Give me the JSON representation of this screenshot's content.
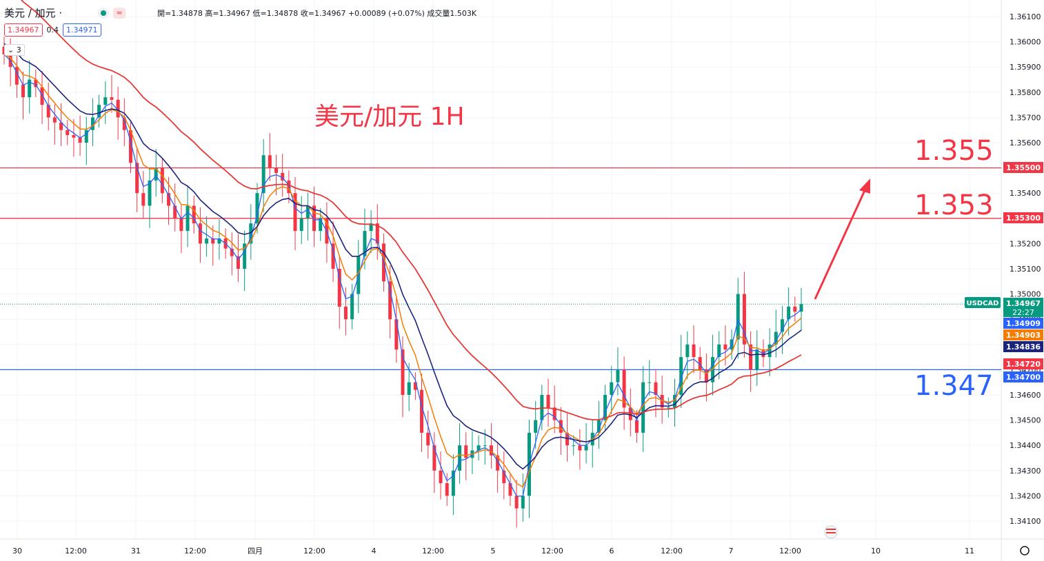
{
  "legend": {
    "symbol": "美元 / 加元 ·",
    "ohlc": "開=1.34878 高=1.34967 低=1.34878 收=1.34967 +0.00089 (+0.07%) 成交量1.503K",
    "bid": "1.34967",
    "spread": "0.4",
    "ask": "1.34971",
    "indicators_collapsed": "3"
  },
  "annotation": {
    "title": "美元/加元 1H",
    "levels": [
      {
        "label": "1.355",
        "value": 1.355,
        "color": "#f23645"
      },
      {
        "label": "1.353",
        "value": 1.353,
        "color": "#f23645"
      },
      {
        "label": "1.347",
        "value": 1.347,
        "color": "#2962ff"
      }
    ]
  },
  "colors": {
    "up": "#089981",
    "down": "#f23645",
    "ma_fast": "#2962ff",
    "ma_mid": "#f57c00",
    "ma_slow": "#1a237e",
    "ma_long": "#e53935",
    "grid": "#f0f3fa"
  },
  "chart_data": {
    "type": "candlestick",
    "symbol": "USDCAD",
    "timeframe": "1H",
    "ylim": [
      1.3405,
      1.3612
    ],
    "y_ticks": [
      "1.36100",
      "1.36000",
      "1.35900",
      "1.35800",
      "1.35700",
      "1.35600",
      "1.35500",
      "1.35400",
      "1.35300",
      "1.35200",
      "1.35100",
      "1.35000",
      "1.34900",
      "1.34800",
      "1.34700",
      "1.34600",
      "1.34500",
      "1.34400",
      "1.34300",
      "1.34200",
      "1.34100"
    ],
    "x_labels": [
      "30",
      "12:00",
      "31",
      "12:00",
      "四月",
      "12:00",
      "4",
      "12:00",
      "5",
      "12:00",
      "6",
      "12:00",
      "7",
      "12:00",
      "10",
      "11"
    ],
    "horizontal_lines": [
      1.355,
      1.353,
      1.347
    ],
    "price_tags": [
      {
        "label": "1.35500",
        "color": "#f23645"
      },
      {
        "label": "1.35300",
        "color": "#f23645"
      },
      {
        "label": "USDCAD",
        "color": "#089981"
      },
      {
        "label": "1.34967",
        "sub": "22:27",
        "color": "#089981"
      },
      {
        "label": "1.34909",
        "color": "#2962ff"
      },
      {
        "label": "1.34903",
        "color": "#f57c00"
      },
      {
        "label": "1.34836",
        "color": "#1a237e"
      },
      {
        "label": "1.34720",
        "color": "#f23645"
      },
      {
        "label": "1.34700",
        "color": "#2962ff"
      }
    ],
    "close_path": [
      1.3595,
      1.359,
      1.3583,
      1.3578,
      1.3585,
      1.3582,
      1.3575,
      1.357,
      1.3568,
      1.3565,
      1.3563,
      1.3562,
      1.356,
      1.3565,
      1.357,
      1.3575,
      1.3578,
      1.3577,
      1.357,
      1.3565,
      1.3552,
      1.354,
      1.3535,
      1.3545,
      1.355,
      1.354,
      1.3535,
      1.353,
      1.3525,
      1.3535,
      1.3528,
      1.352,
      1.3522,
      1.352,
      1.3522,
      1.3518,
      1.3515,
      1.351,
      1.352,
      1.3528,
      1.354,
      1.3555,
      1.355,
      1.3548,
      1.3545,
      1.354,
      1.3525,
      1.353,
      1.3535,
      1.3525,
      1.353,
      1.352,
      1.351,
      1.3495,
      1.349,
      1.35,
      1.3515,
      1.3525,
      1.3528,
      1.352,
      1.3505,
      1.349,
      1.3478,
      1.346,
      1.3465,
      1.3462,
      1.3445,
      1.344,
      1.343,
      1.3425,
      1.342,
      1.343,
      1.344,
      1.3435,
      1.3438,
      1.344,
      1.344,
      1.3436,
      1.343,
      1.3425,
      1.342,
      1.3415,
      1.342,
      1.3445,
      1.345,
      1.346,
      1.3455,
      1.345,
      1.3445,
      1.344,
      1.344,
      1.3438,
      1.344,
      1.3445,
      1.345,
      1.346,
      1.3465,
      1.347,
      1.3455,
      1.345,
      1.3445,
      1.3465,
      1.3465,
      1.346,
      1.3455,
      1.3455,
      1.346,
      1.3475,
      1.348,
      1.3475,
      1.347,
      1.3465,
      1.3475,
      1.348,
      1.3478,
      1.3482,
      1.35,
      1.348,
      1.347,
      1.3478,
      1.3475,
      1.348,
      1.3485,
      1.349,
      1.3495,
      1.3493,
      1.3496
    ]
  }
}
